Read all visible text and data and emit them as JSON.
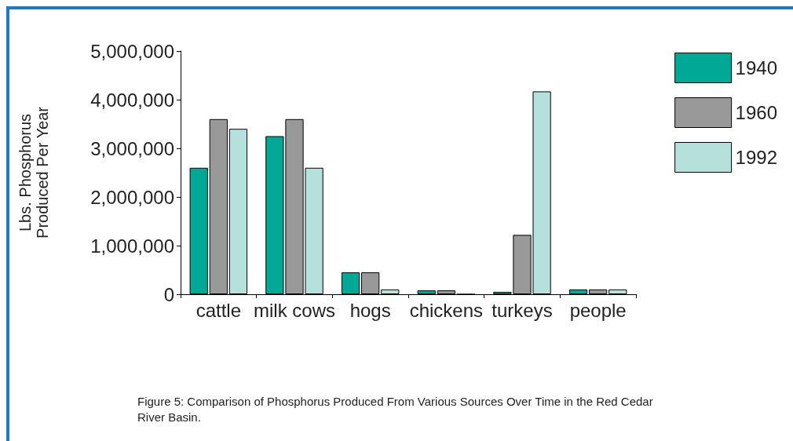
{
  "chart_data": {
    "type": "bar",
    "ylabel": "Lbs. Phosphorus\nProduced Per Year",
    "categories": [
      "cattle",
      "milk cows",
      "hogs",
      "chickens",
      "turkeys",
      "people"
    ],
    "series": [
      {
        "name": "1940",
        "color": "#00a896",
        "values": [
          2600000,
          3250000,
          450000,
          80000,
          50000,
          100000
        ]
      },
      {
        "name": "1960",
        "color": "#999999",
        "values": [
          3600000,
          3600000,
          450000,
          80000,
          1220000,
          100000
        ]
      },
      {
        "name": "1992",
        "color": "#b5e0db",
        "values": [
          3400000,
          2600000,
          100000,
          0,
          4170000,
          100000
        ]
      }
    ],
    "ylim": [
      0,
      5000000
    ],
    "yticks": [
      {
        "value": 0,
        "label": "0"
      },
      {
        "value": 1000000,
        "label": "1,000,000"
      },
      {
        "value": 2000000,
        "label": "2,000,000"
      },
      {
        "value": 3000000,
        "label": "3,000,000"
      },
      {
        "value": 4000000,
        "label": "4,000,000"
      },
      {
        "value": 5000000,
        "label": "5,000,000"
      }
    ],
    "grid": false,
    "legend": "top right",
    "annotations": [
      "Figure 5: Comparison of Phosphorus Produced From Various Sources Over Time in the Red Cedar River Basin."
    ]
  }
}
